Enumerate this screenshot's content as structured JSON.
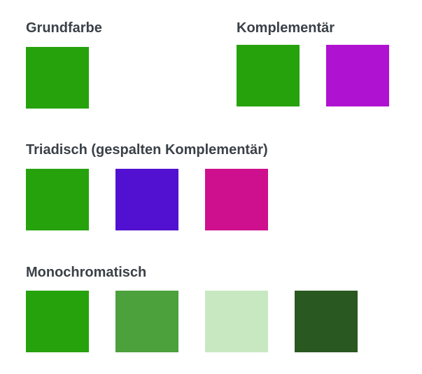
{
  "sections": {
    "base": {
      "title": "Grundfarbe",
      "colors": [
        "#26a20d"
      ]
    },
    "complementary": {
      "title": "Komplementär",
      "colors": [
        "#26a20d",
        "#b012d2"
      ]
    },
    "triadic": {
      "title": "Triadisch (gespalten Komplementär)",
      "colors": [
        "#26a20d",
        "#5210d0",
        "#cf108e"
      ]
    },
    "monochromatic": {
      "title": "Monochromatisch",
      "colors": [
        "#26a20d",
        "#4ca13c",
        "#c8e8c2",
        "#295920"
      ]
    }
  }
}
